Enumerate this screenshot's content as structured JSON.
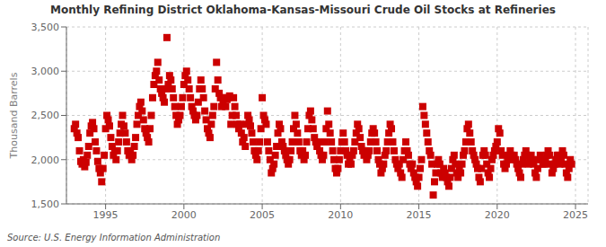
{
  "chart_data": {
    "type": "scatter",
    "title": "Monthly Refining District Oklahoma-Kansas-Missouri Crude Oil Stocks at Refineries",
    "ylabel": "Thousand Barrels",
    "source": "Source: U.S. Energy Information Administration",
    "color": "#cc0000",
    "marker": "square",
    "grid": true,
    "xlim": [
      1992.5,
      2025.8
    ],
    "xticks": [
      1995,
      2000,
      2005,
      2010,
      2015,
      2020,
      2025
    ],
    "ylim": [
      1500,
      3500
    ],
    "yticks": [
      {
        "value": 1500,
        "label": "1,500"
      },
      {
        "value": 2000,
        "label": "2,000"
      },
      {
        "value": 2500,
        "label": "2,500"
      },
      {
        "value": 3000,
        "label": "3,000"
      },
      {
        "value": 3500,
        "label": "3,500"
      }
    ],
    "x": [
      1993.0,
      1993.083,
      1993.167,
      1993.25,
      1993.333,
      1993.417,
      1993.5,
      1993.583,
      1993.667,
      1993.75,
      1993.833,
      1993.917,
      1994.0,
      1994.083,
      1994.167,
      1994.25,
      1994.333,
      1994.417,
      1994.5,
      1994.583,
      1994.667,
      1994.75,
      1994.833,
      1994.917,
      1995.0,
      1995.083,
      1995.167,
      1995.25,
      1995.333,
      1995.417,
      1995.5,
      1995.583,
      1995.667,
      1995.75,
      1995.833,
      1995.917,
      1996.0,
      1996.083,
      1996.167,
      1996.25,
      1996.333,
      1996.417,
      1996.5,
      1996.583,
      1996.667,
      1996.75,
      1996.833,
      1996.917,
      1997.0,
      1997.083,
      1997.167,
      1997.25,
      1997.333,
      1997.417,
      1997.5,
      1997.583,
      1997.667,
      1997.75,
      1997.833,
      1997.917,
      1998.0,
      1998.083,
      1998.167,
      1998.25,
      1998.333,
      1998.417,
      1998.5,
      1998.583,
      1998.667,
      1998.75,
      1998.833,
      1998.917,
      1999.0,
      1999.083,
      1999.167,
      1999.25,
      1999.333,
      1999.417,
      1999.5,
      1999.583,
      1999.667,
      1999.75,
      1999.833,
      1999.917,
      2000.0,
      2000.083,
      2000.167,
      2000.25,
      2000.333,
      2000.417,
      2000.5,
      2000.583,
      2000.667,
      2000.75,
      2000.833,
      2000.917,
      2001.0,
      2001.083,
      2001.167,
      2001.25,
      2001.333,
      2001.417,
      2001.5,
      2001.583,
      2001.667,
      2001.75,
      2001.833,
      2001.917,
      2002.0,
      2002.083,
      2002.167,
      2002.25,
      2002.333,
      2002.417,
      2002.5,
      2002.583,
      2002.667,
      2002.75,
      2002.833,
      2002.917,
      2003.0,
      2003.083,
      2003.167,
      2003.25,
      2003.333,
      2003.417,
      2003.5,
      2003.583,
      2003.667,
      2003.75,
      2003.833,
      2003.917,
      2004.0,
      2004.083,
      2004.167,
      2004.25,
      2004.333,
      2004.417,
      2004.5,
      2004.583,
      2004.667,
      2004.75,
      2004.833,
      2004.917,
      2005.0,
      2005.083,
      2005.167,
      2005.25,
      2005.333,
      2005.417,
      2005.5,
      2005.583,
      2005.667,
      2005.75,
      2005.833,
      2005.917,
      2006.0,
      2006.083,
      2006.167,
      2006.25,
      2006.333,
      2006.417,
      2006.5,
      2006.583,
      2006.667,
      2006.75,
      2006.833,
      2006.917,
      2007.0,
      2007.083,
      2007.167,
      2007.25,
      2007.333,
      2007.417,
      2007.5,
      2007.583,
      2007.667,
      2007.75,
      2007.833,
      2007.917,
      2008.0,
      2008.083,
      2008.167,
      2008.25,
      2008.333,
      2008.417,
      2008.5,
      2008.583,
      2008.667,
      2008.75,
      2008.833,
      2008.917,
      2009.0,
      2009.083,
      2009.167,
      2009.25,
      2009.333,
      2009.417,
      2009.5,
      2009.583,
      2009.667,
      2009.75,
      2009.833,
      2009.917,
      2010.0,
      2010.083,
      2010.167,
      2010.25,
      2010.333,
      2010.417,
      2010.5,
      2010.583,
      2010.667,
      2010.75,
      2010.833,
      2010.917,
      2011.0,
      2011.083,
      2011.167,
      2011.25,
      2011.333,
      2011.417,
      2011.5,
      2011.583,
      2011.667,
      2011.75,
      2011.833,
      2011.917,
      2012.0,
      2012.083,
      2012.167,
      2012.25,
      2012.333,
      2012.417,
      2012.5,
      2012.583,
      2012.667,
      2012.75,
      2012.833,
      2012.917,
      2013.0,
      2013.083,
      2013.167,
      2013.25,
      2013.333,
      2013.417,
      2013.5,
      2013.583,
      2013.667,
      2013.75,
      2013.833,
      2013.917,
      2014.0,
      2014.083,
      2014.167,
      2014.25,
      2014.333,
      2014.417,
      2014.5,
      2014.583,
      2014.667,
      2014.75,
      2014.833,
      2014.917,
      2015.0,
      2015.083,
      2015.167,
      2015.25,
      2015.333,
      2015.417,
      2015.5,
      2015.583,
      2015.667,
      2015.75,
      2015.833,
      2015.917,
      2016.0,
      2016.083,
      2016.167,
      2016.25,
      2016.333,
      2016.417,
      2016.5,
      2016.583,
      2016.667,
      2016.75,
      2016.833,
      2016.917,
      2017.0,
      2017.083,
      2017.167,
      2017.25,
      2017.333,
      2017.417,
      2017.5,
      2017.583,
      2017.667,
      2017.75,
      2017.833,
      2017.917,
      2018.0,
      2018.083,
      2018.167,
      2018.25,
      2018.333,
      2018.417,
      2018.5,
      2018.583,
      2018.667,
      2018.75,
      2018.833,
      2018.917,
      2019.0,
      2019.083,
      2019.167,
      2019.25,
      2019.333,
      2019.417,
      2019.5,
      2019.583,
      2019.667,
      2019.75,
      2019.833,
      2019.917,
      2020.0,
      2020.083,
      2020.167,
      2020.25,
      2020.333,
      2020.417,
      2020.5,
      2020.583,
      2020.667,
      2020.75,
      2020.833,
      2020.917,
      2021.0,
      2021.083,
      2021.167,
      2021.25,
      2021.333,
      2021.417,
      2021.5,
      2021.583,
      2021.667,
      2021.75,
      2021.833,
      2021.917,
      2022.0,
      2022.083,
      2022.167,
      2022.25,
      2022.333,
      2022.417,
      2022.5,
      2022.583,
      2022.667,
      2022.75,
      2022.833,
      2022.917,
      2023.0,
      2023.083,
      2023.167,
      2023.25,
      2023.333,
      2023.417,
      2023.5,
      2023.583,
      2023.667,
      2023.75,
      2023.833,
      2023.917,
      2024.0,
      2024.083,
      2024.167,
      2024.25,
      2024.333,
      2024.417,
      2024.5,
      2024.583,
      2024.667,
      2024.75
    ],
    "values": [
      2350,
      2400,
      2300,
      2250,
      2100,
      1980,
      1950,
      2000,
      1920,
      1970,
      2050,
      2150,
      2300,
      2380,
      2420,
      2350,
      2200,
      2100,
      1980,
      1900,
      1850,
      1750,
      1900,
      2050,
      2350,
      2500,
      2450,
      2380,
      2250,
      2150,
      2050,
      2100,
      2000,
      2100,
      2200,
      2300,
      2400,
      2500,
      2380,
      2300,
      2200,
      2100,
      2050,
      2100,
      2000,
      2050,
      2150,
      2250,
      2400,
      2500,
      2600,
      2650,
      2550,
      2450,
      2350,
      2300,
      2250,
      2200,
      2350,
      2500,
      2700,
      2850,
      2950,
      3000,
      3100,
      2900,
      2800,
      2750,
      2700,
      2650,
      2800,
      3380,
      2850,
      2950,
      2900,
      2800,
      2700,
      2600,
      2500,
      2400,
      2450,
      2500,
      2600,
      2700,
      2850,
      2950,
      3000,
      2900,
      2800,
      2700,
      2600,
      2550,
      2500,
      2450,
      2500,
      2650,
      2800,
      2900,
      2800,
      2700,
      2550,
      2450,
      2350,
      2300,
      2250,
      2400,
      2500,
      2600,
      2800,
      3100,
      2900,
      2750,
      2700,
      2600,
      2650,
      2700,
      2600,
      2680,
      2700,
      2720,
      2400,
      2500,
      2700,
      2600,
      2500,
      2400,
      2350,
      2400,
      2300,
      2200,
      2250,
      2150,
      2400,
      2500,
      2450,
      2380,
      2300,
      2200,
      2100,
      2050,
      2000,
      2100,
      2200,
      2350,
      2700,
      2500,
      2450,
      2400,
      2200,
      2100,
      2000,
      1850,
      1900,
      1950,
      2050,
      2150,
      2300,
      2400,
      2350,
      2200,
      2150,
      2100,
      2050,
      2000,
      1950,
      2000,
      2100,
      2200,
      2350,
      2500,
      2400,
      2300,
      2200,
      2100,
      2050,
      2100,
      2000,
      2050,
      2200,
      2350,
      2500,
      2550,
      2450,
      2350,
      2250,
      2200,
      2150,
      2200,
      2100,
      2050,
      2000,
      2050,
      2200,
      2350,
      2550,
      2400,
      2300,
      2200,
      2100,
      2000,
      1900,
      1850,
      1900,
      2000,
      2100,
      2200,
      2300,
      2200,
      2100,
      2050,
      1950,
      2000,
      1950,
      2050,
      2100,
      2200,
      2300,
      2400,
      2350,
      2250,
      2150,
      2100,
      2050,
      2100,
      2000,
      2050,
      2100,
      2200,
      2300,
      2350,
      2300,
      2200,
      2100,
      2000,
      1950,
      1850,
      1900,
      1950,
      2050,
      2100,
      2200,
      2300,
      2400,
      2350,
      2200,
      2100,
      2000,
      1950,
      1900,
      1950,
      1850,
      1800,
      2000,
      2100,
      2200,
      2100,
      2050,
      1950,
      1900,
      1950,
      1850,
      1800,
      1750,
      1700,
      1800,
      1900,
      2000,
      2600,
      2500,
      2400,
      2300,
      2200,
      2100,
      2050,
      1950,
      1600,
      1750,
      1850,
      1950,
      2000,
      1950,
      1850,
      1800,
      1900,
      1850,
      1800,
      1750,
      1700,
      1800,
      1900,
      2000,
      2050,
      1950,
      1850,
      1800,
      1900,
      1850,
      1950,
      2050,
      2100,
      2200,
      2350,
      2400,
      2300,
      2200,
      2100,
      2050,
      2000,
      1950,
      1900,
      1800,
      1750,
      1900,
      2050,
      2100,
      2050,
      1950,
      1850,
      1800,
      1900,
      2000,
      2050,
      2100,
      2150,
      2200,
      2350,
      2300,
      2100,
      2050,
      1950,
      1900,
      1950,
      2000,
      2050,
      2100,
      2050,
      2000,
      2050,
      2000,
      1950,
      1900,
      1850,
      1800,
      1950,
      2000,
      2050,
      2100,
      2050,
      1950,
      2000,
      2050,
      2000,
      1950,
      1850,
      1800,
      1900,
      2000,
      2050,
      2000,
      1950,
      1950,
      2000,
      2050,
      2100,
      2050,
      1950,
      1850,
      1900,
      1950,
      2000,
      2050,
      2050,
      1950,
      2000,
      2100,
      2050,
      1950,
      1850,
      1800,
      1900,
      2000,
      1950
    ]
  }
}
